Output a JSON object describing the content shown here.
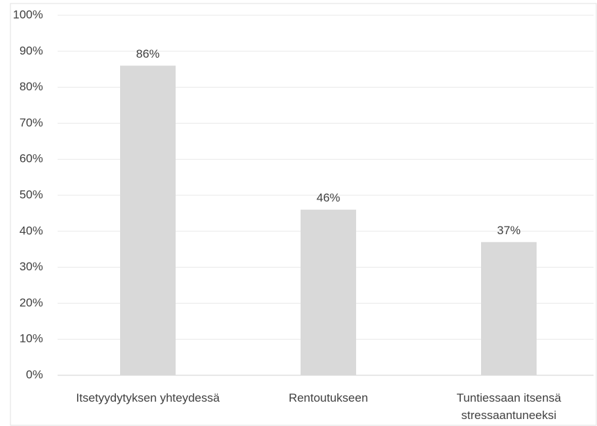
{
  "chart_data": {
    "type": "bar",
    "categories": [
      "Itsetyydytyksen yhteydessä",
      "Rentoutukseen",
      "Tuntiessaan itsensä stressaantuneeksi"
    ],
    "values": [
      86,
      46,
      37
    ],
    "value_labels": [
      "86%",
      "46%",
      "37%"
    ],
    "color": "#d9d9d9",
    "ylim": [
      0,
      100
    ],
    "yticks": [
      {
        "value": 0,
        "label": "0%"
      },
      {
        "value": 10,
        "label": "10%"
      },
      {
        "value": 20,
        "label": "20%"
      },
      {
        "value": 30,
        "label": "30%"
      },
      {
        "value": 40,
        "label": "40%"
      },
      {
        "value": 50,
        "label": "50%"
      },
      {
        "value": 60,
        "label": "60%"
      },
      {
        "value": 70,
        "label": "70%"
      },
      {
        "value": 80,
        "label": "80%"
      },
      {
        "value": 90,
        "label": "90%"
      },
      {
        "value": 100,
        "label": "100%"
      }
    ],
    "grid": true
  }
}
